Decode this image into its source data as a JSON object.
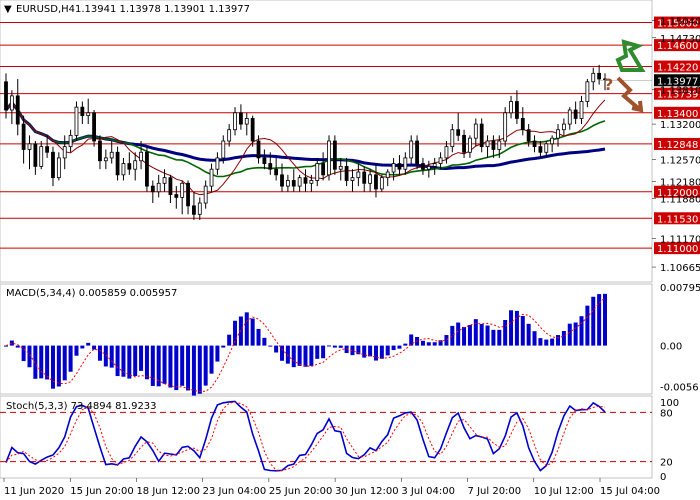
{
  "chart_data": {
    "type": "candlestick",
    "header": {
      "symbol_timeframe": "EURUSD,H4",
      "ohlc": "1.13941 1.13978 1.13901 1.13977"
    },
    "price_axis": {
      "ylim": [
        1.104,
        1.154
      ],
      "ticks": [
        "1.15040",
        "1.14730",
        "1.13810",
        "1.13200",
        "1.12570",
        "1.12180",
        "1.11880",
        "1.11170",
        "1.10665"
      ],
      "current_price": "1.13977"
    },
    "levels": [
      {
        "label": "1.15000",
        "value": 1.15
      },
      {
        "label": "1.14600",
        "value": 1.146
      },
      {
        "label": "1.14220",
        "value": 1.1422
      },
      {
        "label": "1.13739",
        "value": 1.13739
      },
      {
        "label": "1.13400",
        "value": 1.134
      },
      {
        "label": "1.12848",
        "value": 1.12848
      },
      {
        "label": "1.12000",
        "value": 1.12
      },
      {
        "label": "1.11530",
        "value": 1.1153
      },
      {
        "label": "1.11000",
        "value": 1.11
      }
    ],
    "x_labels": [
      "11 Jun 2020",
      "15 Jun 20:00",
      "18 Jun 12:00",
      "23 Jun 04:00",
      "25 Jun 20:00",
      "30 Jun 12:00",
      "3 Jul 04:00",
      "7 Jul 20:00",
      "10 Jul 12:00",
      "15 Jul 04:00"
    ],
    "candles": [
      [
        1.1395,
        1.141,
        1.133,
        1.1345
      ],
      [
        1.1345,
        1.138,
        1.132,
        1.137
      ],
      [
        1.137,
        1.14,
        1.13,
        1.132
      ],
      [
        1.132,
        1.1335,
        1.125,
        1.1275
      ],
      [
        1.1275,
        1.13,
        1.124,
        1.1285
      ],
      [
        1.1285,
        1.129,
        1.123,
        1.1245
      ],
      [
        1.1245,
        1.129,
        1.124,
        1.128
      ],
      [
        1.128,
        1.13,
        1.126,
        1.127
      ],
      [
        1.127,
        1.128,
        1.121,
        1.1225
      ],
      [
        1.1225,
        1.127,
        1.122,
        1.126
      ],
      [
        1.126,
        1.13,
        1.124,
        1.128
      ],
      [
        1.128,
        1.131,
        1.127,
        1.13
      ],
      [
        1.13,
        1.136,
        1.129,
        1.135
      ],
      [
        1.135,
        1.136,
        1.132,
        1.1335
      ],
      [
        1.1335,
        1.1365,
        1.132,
        1.134
      ],
      [
        1.134,
        1.1345,
        1.128,
        1.129
      ],
      [
        1.129,
        1.13,
        1.124,
        1.1255
      ],
      [
        1.1255,
        1.1275,
        1.124,
        1.126
      ],
      [
        1.126,
        1.129,
        1.125,
        1.127
      ],
      [
        1.127,
        1.128,
        1.122,
        1.123
      ],
      [
        1.123,
        1.126,
        1.122,
        1.125
      ],
      [
        1.125,
        1.127,
        1.123,
        1.124
      ],
      [
        1.124,
        1.127,
        1.122,
        1.1255
      ],
      [
        1.1255,
        1.129,
        1.124,
        1.127
      ],
      [
        1.127,
        1.128,
        1.12,
        1.121
      ],
      [
        1.121,
        1.122,
        1.118,
        1.12
      ],
      [
        1.12,
        1.123,
        1.119,
        1.1215
      ],
      [
        1.1215,
        1.124,
        1.12,
        1.1225
      ],
      [
        1.1225,
        1.123,
        1.118,
        1.1195
      ],
      [
        1.1195,
        1.121,
        1.117,
        1.119
      ],
      [
        1.119,
        1.122,
        1.116,
        1.1215
      ],
      [
        1.1215,
        1.122,
        1.116,
        1.1175
      ],
      [
        1.1175,
        1.12,
        1.115,
        1.116
      ],
      [
        1.116,
        1.119,
        1.115,
        1.118
      ],
      [
        1.118,
        1.122,
        1.117,
        1.121
      ],
      [
        1.121,
        1.125,
        1.12,
        1.124
      ],
      [
        1.124,
        1.127,
        1.123,
        1.126
      ],
      [
        1.126,
        1.13,
        1.125,
        1.129
      ],
      [
        1.129,
        1.132,
        1.128,
        1.131
      ],
      [
        1.131,
        1.135,
        1.13,
        1.134
      ],
      [
        1.134,
        1.1355,
        1.131,
        1.132
      ],
      [
        1.132,
        1.134,
        1.13,
        1.133
      ],
      [
        1.133,
        1.1335,
        1.128,
        1.129
      ],
      [
        1.129,
        1.13,
        1.125,
        1.126
      ],
      [
        1.126,
        1.1275,
        1.124,
        1.125
      ],
      [
        1.125,
        1.127,
        1.123,
        1.124
      ],
      [
        1.124,
        1.126,
        1.122,
        1.123
      ],
      [
        1.123,
        1.125,
        1.12,
        1.121
      ],
      [
        1.121,
        1.123,
        1.12,
        1.122
      ],
      [
        1.122,
        1.124,
        1.12,
        1.121
      ],
      [
        1.121,
        1.123,
        1.12,
        1.1225
      ],
      [
        1.1225,
        1.124,
        1.12,
        1.1215
      ],
      [
        1.1215,
        1.123,
        1.12,
        1.122
      ],
      [
        1.122,
        1.126,
        1.121,
        1.125
      ],
      [
        1.125,
        1.127,
        1.122,
        1.123
      ],
      [
        1.123,
        1.13,
        1.122,
        1.129
      ],
      [
        1.129,
        1.13,
        1.123,
        1.124
      ],
      [
        1.124,
        1.126,
        1.122,
        1.1245
      ],
      [
        1.1245,
        1.126,
        1.121,
        1.122
      ],
      [
        1.122,
        1.124,
        1.12,
        1.1225
      ],
      [
        1.1225,
        1.125,
        1.121,
        1.1235
      ],
      [
        1.1235,
        1.1245,
        1.12,
        1.1215
      ],
      [
        1.1215,
        1.124,
        1.12,
        1.123
      ],
      [
        1.123,
        1.125,
        1.119,
        1.1205
      ],
      [
        1.1205,
        1.123,
        1.12,
        1.1225
      ],
      [
        1.1225,
        1.124,
        1.121,
        1.1235
      ],
      [
        1.1235,
        1.126,
        1.122,
        1.125
      ],
      [
        1.125,
        1.1265,
        1.123,
        1.124
      ],
      [
        1.124,
        1.127,
        1.123,
        1.126
      ],
      [
        1.126,
        1.13,
        1.125,
        1.129
      ],
      [
        1.129,
        1.13,
        1.124,
        1.125
      ],
      [
        1.125,
        1.126,
        1.123,
        1.124
      ],
      [
        1.124,
        1.1255,
        1.1225,
        1.1245
      ],
      [
        1.1245,
        1.126,
        1.123,
        1.125
      ],
      [
        1.125,
        1.127,
        1.124,
        1.126
      ],
      [
        1.126,
        1.129,
        1.125,
        1.128
      ],
      [
        1.128,
        1.132,
        1.127,
        1.131
      ],
      [
        1.131,
        1.134,
        1.129,
        1.13
      ],
      [
        1.13,
        1.131,
        1.126,
        1.127
      ],
      [
        1.127,
        1.13,
        1.126,
        1.1295
      ],
      [
        1.1295,
        1.133,
        1.128,
        1.132
      ],
      [
        1.132,
        1.133,
        1.127,
        1.128
      ],
      [
        1.128,
        1.13,
        1.126,
        1.129
      ],
      [
        1.129,
        1.13,
        1.126,
        1.1275
      ],
      [
        1.1275,
        1.13,
        1.126,
        1.129
      ],
      [
        1.129,
        1.135,
        1.128,
        1.134
      ],
      [
        1.134,
        1.137,
        1.133,
        1.136
      ],
      [
        1.136,
        1.138,
        1.132,
        1.133
      ],
      [
        1.133,
        1.135,
        1.13,
        1.131
      ],
      [
        1.131,
        1.132,
        1.128,
        1.129
      ],
      [
        1.129,
        1.13,
        1.127,
        1.128
      ],
      [
        1.128,
        1.129,
        1.126,
        1.127
      ],
      [
        1.127,
        1.129,
        1.126,
        1.1285
      ],
      [
        1.1285,
        1.13,
        1.127,
        1.1295
      ],
      [
        1.1295,
        1.132,
        1.128,
        1.131
      ],
      [
        1.131,
        1.133,
        1.13,
        1.132
      ],
      [
        1.132,
        1.135,
        1.131,
        1.1345
      ],
      [
        1.1345,
        1.136,
        1.132,
        1.133
      ],
      [
        1.133,
        1.137,
        1.132,
        1.136
      ],
      [
        1.136,
        1.14,
        1.135,
        1.1395
      ],
      [
        1.1395,
        1.142,
        1.138,
        1.141
      ],
      [
        1.141,
        1.1425,
        1.139,
        1.14
      ],
      [
        1.14,
        1.141,
        1.138,
        1.1398
      ]
    ],
    "indicators": [
      {
        "name": "MA slow",
        "color": "#000080",
        "start": 1.1145,
        "end": 1.1288
      },
      {
        "name": "MA medium",
        "color": "#006400",
        "start": 1.1215,
        "end": 1.1305
      },
      {
        "name": "MA fast",
        "color": "#8b0000",
        "start": 1.131,
        "end": 1.133
      }
    ],
    "signals": {
      "up_arrow_color": "#2e8b2e",
      "down_arrow_color": "#a0522d",
      "question_mark": "?"
    },
    "macd": {
      "title": "MACD(5,34,4) 0.005859 0.005957",
      "ticks": [
        "0.007957",
        "0.00",
        "-0.0056"
      ],
      "ylim": [
        -0.0066,
        0.0084
      ],
      "histogram_color": "#0000cd",
      "signal_color": "#ff0000"
    },
    "stochastic": {
      "title": "Stoch(5,3,3) 73.4894 81.9233",
      "ticks": [
        "100",
        "80",
        "20",
        "0"
      ],
      "levels": [
        80,
        20
      ],
      "main_color": "#0000cd",
      "signal_color": "#ff0000"
    }
  }
}
